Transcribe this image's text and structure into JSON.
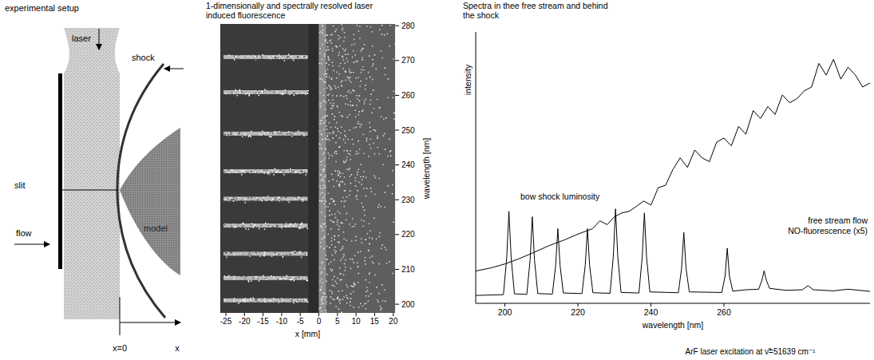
{
  "setup": {
    "title": "experimental setup",
    "labels": {
      "laser": "laser",
      "shock": "shock",
      "slit": "slit",
      "flow": "flow",
      "model": "model",
      "origin": "x=0",
      "axis": "x"
    }
  },
  "lif_image": {
    "title": "1-dimensionally and spectrally resolved laser induced fluorescence",
    "xlabel": "x [mm]",
    "ylabel": "wavelength [nm]",
    "xlim": [
      -26.5,
      20.5
    ],
    "xticks": [
      -25,
      -20,
      -15,
      -10,
      -5,
      0,
      5,
      10,
      15,
      20
    ],
    "ylim": [
      197.5,
      280.5
    ],
    "yticks": [
      200,
      210,
      220,
      230,
      240,
      250,
      260,
      270,
      280
    ],
    "fluorescence_bands": [
      201.1,
      207.5,
      214.5,
      222.6,
      230.3,
      238.2,
      249.0,
      260.9,
      271.0
    ],
    "free_stream_end": -3,
    "shock_position": 0
  },
  "chart_data": {
    "type": "line",
    "title": "Spectra in thee free stream and behind the shock",
    "xlabel": "wavelength [nm]",
    "ylabel": "intensity",
    "annotation": "ArF laser excitation at ν̃=51639 cm⁻¹",
    "xlim": [
      192,
      300
    ],
    "xticks": [
      200,
      220,
      240,
      260
    ],
    "ylim": [
      0,
      100
    ],
    "tick_labels": "x",
    "series": [
      {
        "name": "bow shock luminosity",
        "color": "#000000",
        "x": [
          192,
          196,
          200,
          204,
          208,
          212,
          216,
          220,
          224,
          226,
          228,
          230,
          232,
          234,
          236,
          238,
          240,
          242,
          244,
          246,
          248,
          250,
          252,
          254,
          256,
          258,
          260,
          262,
          264,
          266,
          268,
          270,
          272,
          274,
          276,
          278,
          280,
          282,
          284,
          286,
          288,
          290,
          292,
          294,
          296,
          298,
          300
        ],
        "values": [
          11.9,
          13.0,
          14.5,
          16.5,
          18.8,
          21.2,
          23.2,
          25.5,
          27.5,
          30.4,
          29.0,
          31.9,
          33.3,
          33.9,
          35.7,
          37.7,
          36.2,
          42.6,
          43.5,
          49.3,
          53.6,
          50.1,
          56.5,
          53.6,
          52.2,
          59.4,
          60.9,
          58.0,
          65.2,
          62.3,
          71.0,
          68.1,
          72.5,
          69.6,
          76.8,
          73.9,
          75.4,
          78.3,
          79.7,
          88.4,
          84.1,
          89.9,
          82.6,
          87.0,
          84.1,
          79.7,
          81.2
        ]
      },
      {
        "name": "free stream flow NO-fluorescence (x5)",
        "color": "#000000",
        "x": [
          192,
          199.6,
          200.5,
          201.1,
          201.7,
          202.6,
          206.0,
          206.9,
          207.5,
          208.1,
          209.0,
          213.0,
          213.9,
          214.5,
          215.1,
          216.0,
          221.1,
          222.0,
          222.6,
          223.2,
          224.1,
          228.8,
          229.7,
          230.3,
          230.9,
          231.8,
          236.7,
          237.6,
          238.2,
          238.8,
          239.7,
          247.5,
          248.4,
          249.0,
          249.6,
          250.5,
          259.4,
          260.3,
          260.9,
          261.5,
          262.4,
          266,
          269.5,
          270.4,
          271.0,
          271.6,
          272.5,
          277,
          281.5,
          283.0,
          284.5,
          290,
          294,
          300
        ],
        "values": [
          2.9,
          3.2,
          17,
          33.9,
          17,
          3.5,
          3.3,
          16,
          31.9,
          16,
          3.6,
          3.4,
          14,
          27.5,
          14,
          3.8,
          3.6,
          14,
          27.5,
          14,
          3.9,
          3.7,
          17.5,
          34.8,
          17.5,
          4.0,
          3.8,
          17,
          33.3,
          17,
          4.2,
          3.9,
          13,
          26.1,
          13,
          4.2,
          4.0,
          10,
          20.3,
          10,
          4.5,
          5.0,
          5.2,
          8.5,
          12,
          8.5,
          5.5,
          4.8,
          5.0,
          6.5,
          5.0,
          4.6,
          5.2,
          4.4
        ]
      }
    ]
  }
}
